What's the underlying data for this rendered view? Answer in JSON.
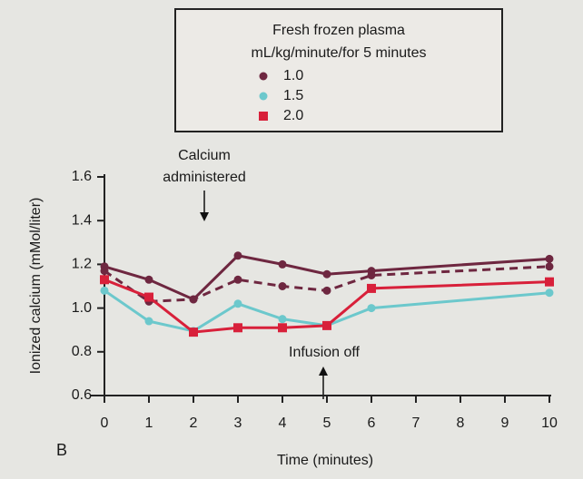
{
  "chart_data": {
    "type": "line",
    "legend_title": [
      "Fresh frozen plasma",
      "mL/kg/minute/for 5 minutes"
    ],
    "x_label": "Time (minutes)",
    "y_label": "Ionized calcium (mMol/liter)",
    "panel_label": "B",
    "annotations": {
      "calcium": [
        "Calcium",
        "administered"
      ],
      "infusion": "Infusion off"
    },
    "x": [
      0,
      1,
      2,
      3,
      4,
      5,
      6,
      10
    ],
    "xlim": [
      0,
      10
    ],
    "xticks": [
      0,
      1,
      2,
      3,
      4,
      5,
      6,
      7,
      8,
      9,
      10
    ],
    "ylim": [
      0.6,
      1.6
    ],
    "yticks": [
      0.6,
      0.8,
      {
        "value": 1,
        "label": "1.0"
      },
      1.2,
      1.4,
      1.6
    ],
    "series": [
      {
        "name": "1.0",
        "color": "#6e2740",
        "marker": "circle",
        "values": [
          1.19,
          1.13,
          1.04,
          1.24,
          1.2,
          1.155,
          1.17,
          1.225
        ]
      },
      {
        "color": "#6e2740",
        "marker": "circle",
        "dashed": true,
        "values": [
          1.17,
          1.03,
          1.04,
          1.13,
          1.1,
          1.08,
          1.15,
          1.19
        ]
      },
      {
        "name": "1.5",
        "color": "#6cc8cc",
        "marker": "circle",
        "values": [
          1.08,
          0.94,
          0.895,
          1.02,
          0.95,
          0.92,
          1.0,
          1.07
        ]
      },
      {
        "name": "2.0",
        "color": "#d8203a",
        "marker": "square",
        "values": [
          1.13,
          1.05,
          0.89,
          0.91,
          0.91,
          0.92,
          1.09,
          1.12
        ]
      }
    ]
  }
}
